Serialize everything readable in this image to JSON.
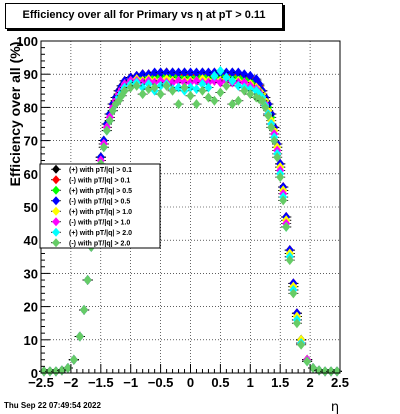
{
  "title": "Efficiency over all for Primary vs    η at pT > 0.11",
  "timestamp": "Thu Sep 22 07:49:54 2022",
  "chart_data": {
    "type": "scatter",
    "title": "Efficiency over all for Primary vs    η at pT > 0.11",
    "xlabel": "η",
    "ylabel": "Efficiency over all (%)",
    "xlim": [
      -2.5,
      2.5
    ],
    "ylim": [
      0,
      100
    ],
    "x_ticks": [
      "−2.5",
      "−2",
      "−1.5",
      "−1",
      "−0.5",
      "0",
      "0.5",
      "1",
      "1.5",
      "2",
      "2.5"
    ],
    "y_ticks": [
      "0",
      "10",
      "20",
      "30",
      "40",
      "50",
      "60",
      "70",
      "80",
      "90",
      "100"
    ],
    "grid": true,
    "legend_position": "left-middle",
    "x": [
      -2.45,
      -2.35,
      -2.25,
      -2.15,
      -2.05,
      -1.95,
      -1.85,
      -1.78,
      -1.72,
      -1.66,
      -1.6,
      -1.55,
      -1.5,
      -1.45,
      -1.4,
      -1.35,
      -1.3,
      -1.25,
      -1.2,
      -1.15,
      -1.1,
      -1.0,
      -0.9,
      -0.8,
      -0.7,
      -0.6,
      -0.5,
      -0.4,
      -0.3,
      -0.2,
      -0.1,
      0.0,
      0.1,
      0.2,
      0.3,
      0.4,
      0.5,
      0.6,
      0.7,
      0.8,
      0.9,
      1.0,
      1.1,
      1.15,
      1.2,
      1.25,
      1.3,
      1.35,
      1.4,
      1.45,
      1.5,
      1.55,
      1.6,
      1.66,
      1.72,
      1.78,
      1.85,
      1.95,
      2.05,
      2.15,
      2.25,
      2.35,
      2.45
    ],
    "series": [
      {
        "name": "(+) with pT/|q| > 0.1",
        "color": "#000000",
        "values": [
          0.5,
          0.5,
          0.5,
          0.8,
          1.5,
          4,
          11,
          19,
          28,
          38,
          49,
          58,
          65,
          70,
          75,
          78,
          81,
          83,
          85,
          86.5,
          88,
          89,
          89.5,
          90,
          90,
          90,
          90.5,
          90.5,
          90.5,
          90,
          90.5,
          90,
          90,
          90.5,
          90,
          90,
          90.5,
          90,
          90.5,
          90,
          89.5,
          89,
          88,
          86.5,
          85,
          83,
          81,
          78,
          74,
          69,
          63,
          56,
          47,
          37,
          27,
          18,
          10,
          4,
          1.5,
          0.8,
          0.5,
          0.5,
          0.5
        ]
      },
      {
        "name": "(-) with pT/|q| > 0.1",
        "color": "#ff0000",
        "values": [
          0.5,
          0.5,
          0.5,
          0.8,
          1.5,
          4,
          11,
          19,
          28,
          38,
          49,
          58,
          65,
          70,
          75,
          78,
          81,
          83,
          85,
          86.5,
          88,
          89,
          89.5,
          90,
          90,
          90,
          90,
          90.5,
          90,
          90,
          90,
          90,
          90,
          90,
          90,
          90.5,
          90,
          90,
          90,
          90,
          89.5,
          89,
          88,
          86.5,
          85,
          83,
          81,
          78,
          74,
          69,
          63,
          56,
          47,
          37,
          27,
          18,
          10,
          4,
          1.5,
          0.8,
          0.5,
          0.5,
          0.5
        ]
      },
      {
        "name": "(+) with pT/|q| > 0.5",
        "color": "#00ff00",
        "values": [
          0.5,
          0.5,
          0.5,
          0.8,
          1.5,
          4,
          11,
          19,
          28,
          38,
          49,
          58,
          65,
          70,
          75,
          78,
          80,
          82,
          84,
          85.5,
          87,
          88,
          88.5,
          89,
          89,
          89,
          89.5,
          89.5,
          89.5,
          89,
          89,
          89,
          89,
          89.5,
          89,
          89,
          89.5,
          89,
          89,
          89,
          88.5,
          88,
          87,
          85.5,
          84,
          82,
          80,
          77,
          73,
          68,
          62,
          55,
          46,
          36,
          26,
          17,
          10,
          4,
          1.5,
          0.8,
          0.5,
          0.5,
          0.5
        ]
      },
      {
        "name": "(-) with pT/|q| > 0.5",
        "color": "#0000ff",
        "values": [
          0.5,
          0.5,
          0.5,
          0.8,
          1.5,
          4,
          11,
          19,
          28,
          38,
          49,
          58,
          65,
          70,
          75,
          78,
          81,
          83,
          85,
          86.5,
          88,
          89,
          89.5,
          90,
          90,
          90.5,
          90.5,
          90.5,
          90.5,
          90.5,
          90.5,
          90.5,
          90.5,
          90.5,
          90.5,
          90.5,
          90.5,
          90.5,
          90.5,
          90.5,
          90,
          89.5,
          88.5,
          87,
          85,
          83,
          81,
          78,
          74,
          69,
          63,
          56,
          47,
          37,
          27,
          18,
          10,
          4,
          1.5,
          0.8,
          0.5,
          0.5,
          0.5
        ]
      },
      {
        "name": "(+) with pT/|q| > 1.0",
        "color": "#ffff00",
        "values": [
          0.5,
          0.5,
          0.5,
          0.8,
          1.5,
          4,
          11,
          19,
          28,
          38,
          49,
          58,
          64,
          69,
          74,
          77,
          80,
          82,
          84,
          85.5,
          87,
          88,
          88.5,
          88,
          88.5,
          88,
          88,
          88.5,
          88,
          88,
          88,
          88,
          88,
          88.5,
          88,
          88,
          88,
          88.5,
          88,
          88,
          87.5,
          87,
          86,
          85,
          84,
          82,
          79,
          76,
          73,
          68,
          62,
          55,
          46,
          36,
          26,
          17,
          10,
          4,
          1.5,
          0.8,
          0.5,
          0.5,
          0.5
        ]
      },
      {
        "name": "(-) with pT/|q| > 1.0",
        "color": "#ff00ff",
        "values": [
          0.5,
          0.5,
          0.5,
          0.8,
          1.5,
          4,
          11,
          19,
          28,
          38,
          49,
          58,
          64,
          69,
          74,
          77,
          80,
          82,
          84,
          85.5,
          87,
          88,
          88,
          87.5,
          88,
          87.5,
          88,
          87.5,
          87.5,
          88,
          87.5,
          87.5,
          88,
          87.5,
          87.5,
          88,
          87.5,
          88,
          87.5,
          87.5,
          87.5,
          86.5,
          85.5,
          84.5,
          83,
          81,
          78,
          75,
          72,
          67,
          61,
          54,
          45,
          35,
          25,
          16,
          9,
          4,
          1.5,
          0.8,
          0.5,
          0.5,
          0.5
        ]
      },
      {
        "name": "(+) with pT/|q| > 2.0",
        "color": "#00ffff",
        "values": [
          0.5,
          0.5,
          0.5,
          0.8,
          1.5,
          4,
          11,
          19,
          28,
          38,
          49,
          57,
          63,
          68,
          73,
          76,
          79,
          81,
          83,
          84.5,
          86,
          87,
          87.5,
          86,
          87,
          85,
          86.5,
          87,
          85.5,
          86,
          85,
          86,
          85.5,
          87,
          86,
          89.5,
          91,
          89,
          88,
          86.5,
          86,
          85.5,
          85,
          84,
          83,
          80.5,
          78,
          75,
          71,
          66,
          60,
          53,
          44,
          35,
          25,
          16,
          9,
          3.5,
          1.5,
          0.8,
          0.5,
          0.5,
          0.5
        ]
      },
      {
        "name": "(-) with pT/|q| > 2.0",
        "color": "#66cc66",
        "values": [
          0.5,
          0.5,
          0.5,
          0.8,
          1.5,
          4,
          11,
          19,
          28,
          38,
          49,
          57,
          63,
          68,
          73,
          76,
          79,
          81,
          82,
          83.5,
          85,
          86,
          86.5,
          84,
          85.5,
          86,
          84,
          86.5,
          85,
          81,
          86,
          83.5,
          81,
          85,
          83,
          82,
          84.5,
          86.5,
          81,
          82,
          85,
          84,
          83,
          82.5,
          82,
          80,
          77.5,
          74,
          70,
          65,
          59,
          52,
          44,
          34,
          24,
          15,
          8.5,
          3.5,
          1.5,
          0.8,
          0.5,
          0.5,
          0.5
        ]
      }
    ]
  }
}
